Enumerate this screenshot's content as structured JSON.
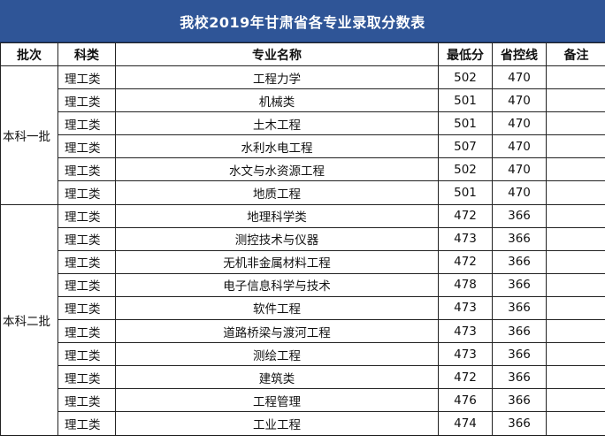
{
  "title": "我校2019年甘肃省各专业录取分数表",
  "headers": [
    "批次",
    "科类",
    "专业名称",
    "最低分",
    "省控线",
    "备注"
  ],
  "groups": [
    {
      "batch": "本科一批",
      "rows": [
        {
          "category": "理工类",
          "major": "工程力学",
          "min_score": "502",
          "control_line": "470",
          "note": ""
        },
        {
          "category": "理工类",
          "major": "机械类",
          "min_score": "501",
          "control_line": "470",
          "note": ""
        },
        {
          "category": "理工类",
          "major": "土木工程",
          "min_score": "501",
          "control_line": "470",
          "note": ""
        },
        {
          "category": "理工类",
          "major": "水利水电工程",
          "min_score": "507",
          "control_line": "470",
          "note": ""
        },
        {
          "category": "理工类",
          "major": "水文与水资源工程",
          "min_score": "502",
          "control_line": "470",
          "note": ""
        },
        {
          "category": "理工类",
          "major": "地质工程",
          "min_score": "501",
          "control_line": "470",
          "note": ""
        }
      ]
    },
    {
      "batch": "本科二批",
      "rows": [
        {
          "category": "理工类",
          "major": "地理科学类",
          "min_score": "472",
          "control_line": "366",
          "note": ""
        },
        {
          "category": "理工类",
          "major": "测控技术与仪器",
          "min_score": "473",
          "control_line": "366",
          "note": ""
        },
        {
          "category": "理工类",
          "major": "无机非金属材料工程",
          "min_score": "472",
          "control_line": "366",
          "note": ""
        },
        {
          "category": "理工类",
          "major": "电子信息科学与技术",
          "min_score": "478",
          "control_line": "366",
          "note": ""
        },
        {
          "category": "理工类",
          "major": "软件工程",
          "min_score": "473",
          "control_line": "366",
          "note": ""
        },
        {
          "category": "理工类",
          "major": "道路桥梁与渡河工程",
          "min_score": "473",
          "control_line": "366",
          "note": ""
        },
        {
          "category": "理工类",
          "major": "测绘工程",
          "min_score": "473",
          "control_line": "366",
          "note": ""
        },
        {
          "category": "理工类",
          "major": "建筑类",
          "min_score": "472",
          "control_line": "366",
          "note": ""
        },
        {
          "category": "理工类",
          "major": "工程管理",
          "min_score": "476",
          "control_line": "366",
          "note": ""
        },
        {
          "category": "理工类",
          "major": "工业工程",
          "min_score": "474",
          "control_line": "366",
          "note": ""
        }
      ]
    }
  ]
}
